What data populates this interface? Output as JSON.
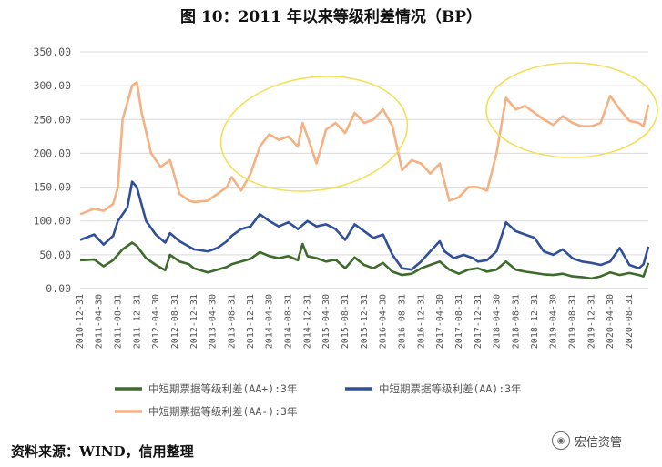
{
  "title": "图 10：2011 年以来等级利差情况（BP）",
  "source": "资料来源：WIND，信用整理",
  "watermark": "宏信资管",
  "chart_data": {
    "type": "line",
    "ylim": [
      0,
      350
    ],
    "yticks": [
      "0.00",
      "50.00",
      "100.00",
      "150.00",
      "200.00",
      "250.00",
      "300.00",
      "350.00"
    ],
    "xticks": [
      "2010-12-31",
      "2011-04-30",
      "2011-08-31",
      "2011-12-31",
      "2012-04-30",
      "2012-08-31",
      "2012-12-31",
      "2013-04-30",
      "2013-08-31",
      "2013-12-31",
      "2014-04-30",
      "2014-08-31",
      "2014-12-31",
      "2015-04-30",
      "2015-08-31",
      "2015-12-31",
      "2016-04-30",
      "2016-08-31",
      "2016-12-31",
      "2017-04-30",
      "2017-08-31",
      "2017-12-31",
      "2018-04-30",
      "2018-08-31",
      "2018-12-31",
      "2019-04-30",
      "2019-08-31",
      "2019-12-31",
      "2020-04-30",
      "2020-08-31"
    ],
    "x_start": "2010-12-31",
    "x_end": "2020-12-31",
    "legend_position": "bottom",
    "series": [
      {
        "name": "中短期票据等级利差(AA+):3年",
        "color": "#3e6a2b",
        "points": [
          [
            "2010-12-31",
            42
          ],
          [
            "2011-03-31",
            43
          ],
          [
            "2011-05-31",
            33
          ],
          [
            "2011-07-31",
            42
          ],
          [
            "2011-09-30",
            58
          ],
          [
            "2011-11-30",
            68
          ],
          [
            "2011-12-31",
            63
          ],
          [
            "2012-02-28",
            45
          ],
          [
            "2012-04-30",
            35
          ],
          [
            "2012-06-30",
            27
          ],
          [
            "2012-07-31",
            50
          ],
          [
            "2012-09-30",
            40
          ],
          [
            "2012-11-30",
            36
          ],
          [
            "2012-12-31",
            30
          ],
          [
            "2013-03-31",
            24
          ],
          [
            "2013-05-31",
            28
          ],
          [
            "2013-07-31",
            32
          ],
          [
            "2013-08-31",
            36
          ],
          [
            "2013-10-31",
            40
          ],
          [
            "2013-12-31",
            44
          ],
          [
            "2014-02-28",
            54
          ],
          [
            "2014-04-30",
            48
          ],
          [
            "2014-06-30",
            45
          ],
          [
            "2014-08-31",
            48
          ],
          [
            "2014-10-31",
            42
          ],
          [
            "2014-11-30",
            66
          ],
          [
            "2014-12-31",
            48
          ],
          [
            "2015-02-28",
            45
          ],
          [
            "2015-04-30",
            40
          ],
          [
            "2015-06-30",
            43
          ],
          [
            "2015-08-31",
            30
          ],
          [
            "2015-10-31",
            46
          ],
          [
            "2015-12-31",
            35
          ],
          [
            "2016-02-28",
            30
          ],
          [
            "2016-04-30",
            38
          ],
          [
            "2016-06-30",
            25
          ],
          [
            "2016-08-31",
            20
          ],
          [
            "2016-10-31",
            22
          ],
          [
            "2016-12-31",
            30
          ],
          [
            "2017-02-28",
            35
          ],
          [
            "2017-04-30",
            40
          ],
          [
            "2017-06-30",
            28
          ],
          [
            "2017-08-31",
            22
          ],
          [
            "2017-10-31",
            28
          ],
          [
            "2017-12-31",
            30
          ],
          [
            "2018-02-28",
            25
          ],
          [
            "2018-04-30",
            28
          ],
          [
            "2018-06-30",
            40
          ],
          [
            "2018-08-31",
            28
          ],
          [
            "2018-10-31",
            25
          ],
          [
            "2018-12-31",
            23
          ],
          [
            "2019-02-28",
            21
          ],
          [
            "2019-04-30",
            20
          ],
          [
            "2019-06-30",
            22
          ],
          [
            "2019-08-31",
            18
          ],
          [
            "2019-10-31",
            17
          ],
          [
            "2019-12-31",
            15
          ],
          [
            "2020-02-29",
            18
          ],
          [
            "2020-04-30",
            24
          ],
          [
            "2020-06-30",
            20
          ],
          [
            "2020-08-31",
            23
          ],
          [
            "2020-10-31",
            20
          ],
          [
            "2020-11-30",
            18
          ],
          [
            "2020-12-31",
            38
          ]
        ]
      },
      {
        "name": "中短期票据等级利差(AA):3年",
        "color": "#2f4f98",
        "points": [
          [
            "2010-12-31",
            72
          ],
          [
            "2011-03-31",
            80
          ],
          [
            "2011-05-31",
            65
          ],
          [
            "2011-07-31",
            78
          ],
          [
            "2011-08-31",
            100
          ],
          [
            "2011-10-31",
            120
          ],
          [
            "2011-11-30",
            158
          ],
          [
            "2011-12-31",
            150
          ],
          [
            "2012-02-28",
            100
          ],
          [
            "2012-04-30",
            80
          ],
          [
            "2012-06-30",
            68
          ],
          [
            "2012-07-31",
            82
          ],
          [
            "2012-09-30",
            70
          ],
          [
            "2012-11-30",
            62
          ],
          [
            "2012-12-31",
            58
          ],
          [
            "2013-03-31",
            55
          ],
          [
            "2013-05-31",
            60
          ],
          [
            "2013-07-31",
            70
          ],
          [
            "2013-08-31",
            78
          ],
          [
            "2013-10-31",
            88
          ],
          [
            "2013-12-31",
            92
          ],
          [
            "2014-02-28",
            110
          ],
          [
            "2014-04-30",
            100
          ],
          [
            "2014-06-30",
            92
          ],
          [
            "2014-08-31",
            98
          ],
          [
            "2014-10-31",
            88
          ],
          [
            "2014-12-31",
            100
          ],
          [
            "2015-02-28",
            92
          ],
          [
            "2015-04-30",
            95
          ],
          [
            "2015-06-30",
            88
          ],
          [
            "2015-08-31",
            72
          ],
          [
            "2015-10-31",
            95
          ],
          [
            "2015-12-31",
            85
          ],
          [
            "2016-02-28",
            75
          ],
          [
            "2016-04-30",
            80
          ],
          [
            "2016-06-30",
            50
          ],
          [
            "2016-08-31",
            30
          ],
          [
            "2016-10-31",
            28
          ],
          [
            "2016-12-31",
            40
          ],
          [
            "2017-02-28",
            55
          ],
          [
            "2017-04-30",
            70
          ],
          [
            "2017-05-31",
            55
          ],
          [
            "2017-07-31",
            45
          ],
          [
            "2017-09-30",
            50
          ],
          [
            "2017-11-30",
            45
          ],
          [
            "2017-12-31",
            40
          ],
          [
            "2018-02-28",
            42
          ],
          [
            "2018-04-30",
            55
          ],
          [
            "2018-06-30",
            98
          ],
          [
            "2018-08-31",
            85
          ],
          [
            "2018-10-31",
            80
          ],
          [
            "2018-12-31",
            75
          ],
          [
            "2019-02-28",
            55
          ],
          [
            "2019-04-30",
            50
          ],
          [
            "2019-06-30",
            58
          ],
          [
            "2019-08-31",
            45
          ],
          [
            "2019-10-31",
            40
          ],
          [
            "2019-12-31",
            38
          ],
          [
            "2020-02-29",
            35
          ],
          [
            "2020-04-30",
            40
          ],
          [
            "2020-06-30",
            60
          ],
          [
            "2020-08-31",
            35
          ],
          [
            "2020-10-31",
            30
          ],
          [
            "2020-11-30",
            36
          ],
          [
            "2020-12-31",
            62
          ]
        ]
      },
      {
        "name": "中短期票据等级利差(AA-):3年",
        "color": "#f5b183",
        "points": [
          [
            "2010-12-31",
            110
          ],
          [
            "2011-03-31",
            118
          ],
          [
            "2011-05-31",
            115
          ],
          [
            "2011-07-31",
            125
          ],
          [
            "2011-08-31",
            150
          ],
          [
            "2011-09-30",
            250
          ],
          [
            "2011-11-30",
            300
          ],
          [
            "2011-12-31",
            305
          ],
          [
            "2012-01-31",
            260
          ],
          [
            "2012-03-31",
            200
          ],
          [
            "2012-05-31",
            180
          ],
          [
            "2012-07-31",
            190
          ],
          [
            "2012-09-30",
            140
          ],
          [
            "2012-11-30",
            130
          ],
          [
            "2012-12-31",
            128
          ],
          [
            "2013-03-31",
            130
          ],
          [
            "2013-05-31",
            140
          ],
          [
            "2013-07-31",
            150
          ],
          [
            "2013-08-31",
            165
          ],
          [
            "2013-10-31",
            145
          ],
          [
            "2013-12-31",
            170
          ],
          [
            "2014-02-28",
            210
          ],
          [
            "2014-04-30",
            228
          ],
          [
            "2014-06-30",
            220
          ],
          [
            "2014-08-31",
            225
          ],
          [
            "2014-10-31",
            210
          ],
          [
            "2014-11-30",
            245
          ],
          [
            "2014-12-31",
            225
          ],
          [
            "2015-02-28",
            185
          ],
          [
            "2015-04-30",
            235
          ],
          [
            "2015-06-30",
            245
          ],
          [
            "2015-08-31",
            230
          ],
          [
            "2015-10-31",
            260
          ],
          [
            "2015-12-31",
            245
          ],
          [
            "2016-02-28",
            250
          ],
          [
            "2016-04-30",
            265
          ],
          [
            "2016-06-30",
            240
          ],
          [
            "2016-08-31",
            175
          ],
          [
            "2016-10-31",
            190
          ],
          [
            "2016-12-31",
            185
          ],
          [
            "2017-02-28",
            170
          ],
          [
            "2017-04-30",
            185
          ],
          [
            "2017-06-30",
            130
          ],
          [
            "2017-08-31",
            135
          ],
          [
            "2017-10-31",
            150
          ],
          [
            "2017-12-31",
            150
          ],
          [
            "2018-02-28",
            145
          ],
          [
            "2018-04-30",
            200
          ],
          [
            "2018-06-30",
            282
          ],
          [
            "2018-08-31",
            265
          ],
          [
            "2018-10-31",
            270
          ],
          [
            "2018-12-31",
            260
          ],
          [
            "2019-02-28",
            250
          ],
          [
            "2019-04-30",
            242
          ],
          [
            "2019-06-30",
            255
          ],
          [
            "2019-08-31",
            245
          ],
          [
            "2019-10-31",
            240
          ],
          [
            "2019-12-31",
            240
          ],
          [
            "2020-02-29",
            245
          ],
          [
            "2020-04-30",
            285
          ],
          [
            "2020-06-30",
            265
          ],
          [
            "2020-08-31",
            248
          ],
          [
            "2020-10-31",
            245
          ],
          [
            "2020-11-30",
            240
          ],
          [
            "2020-12-31",
            272
          ]
        ]
      }
    ]
  }
}
